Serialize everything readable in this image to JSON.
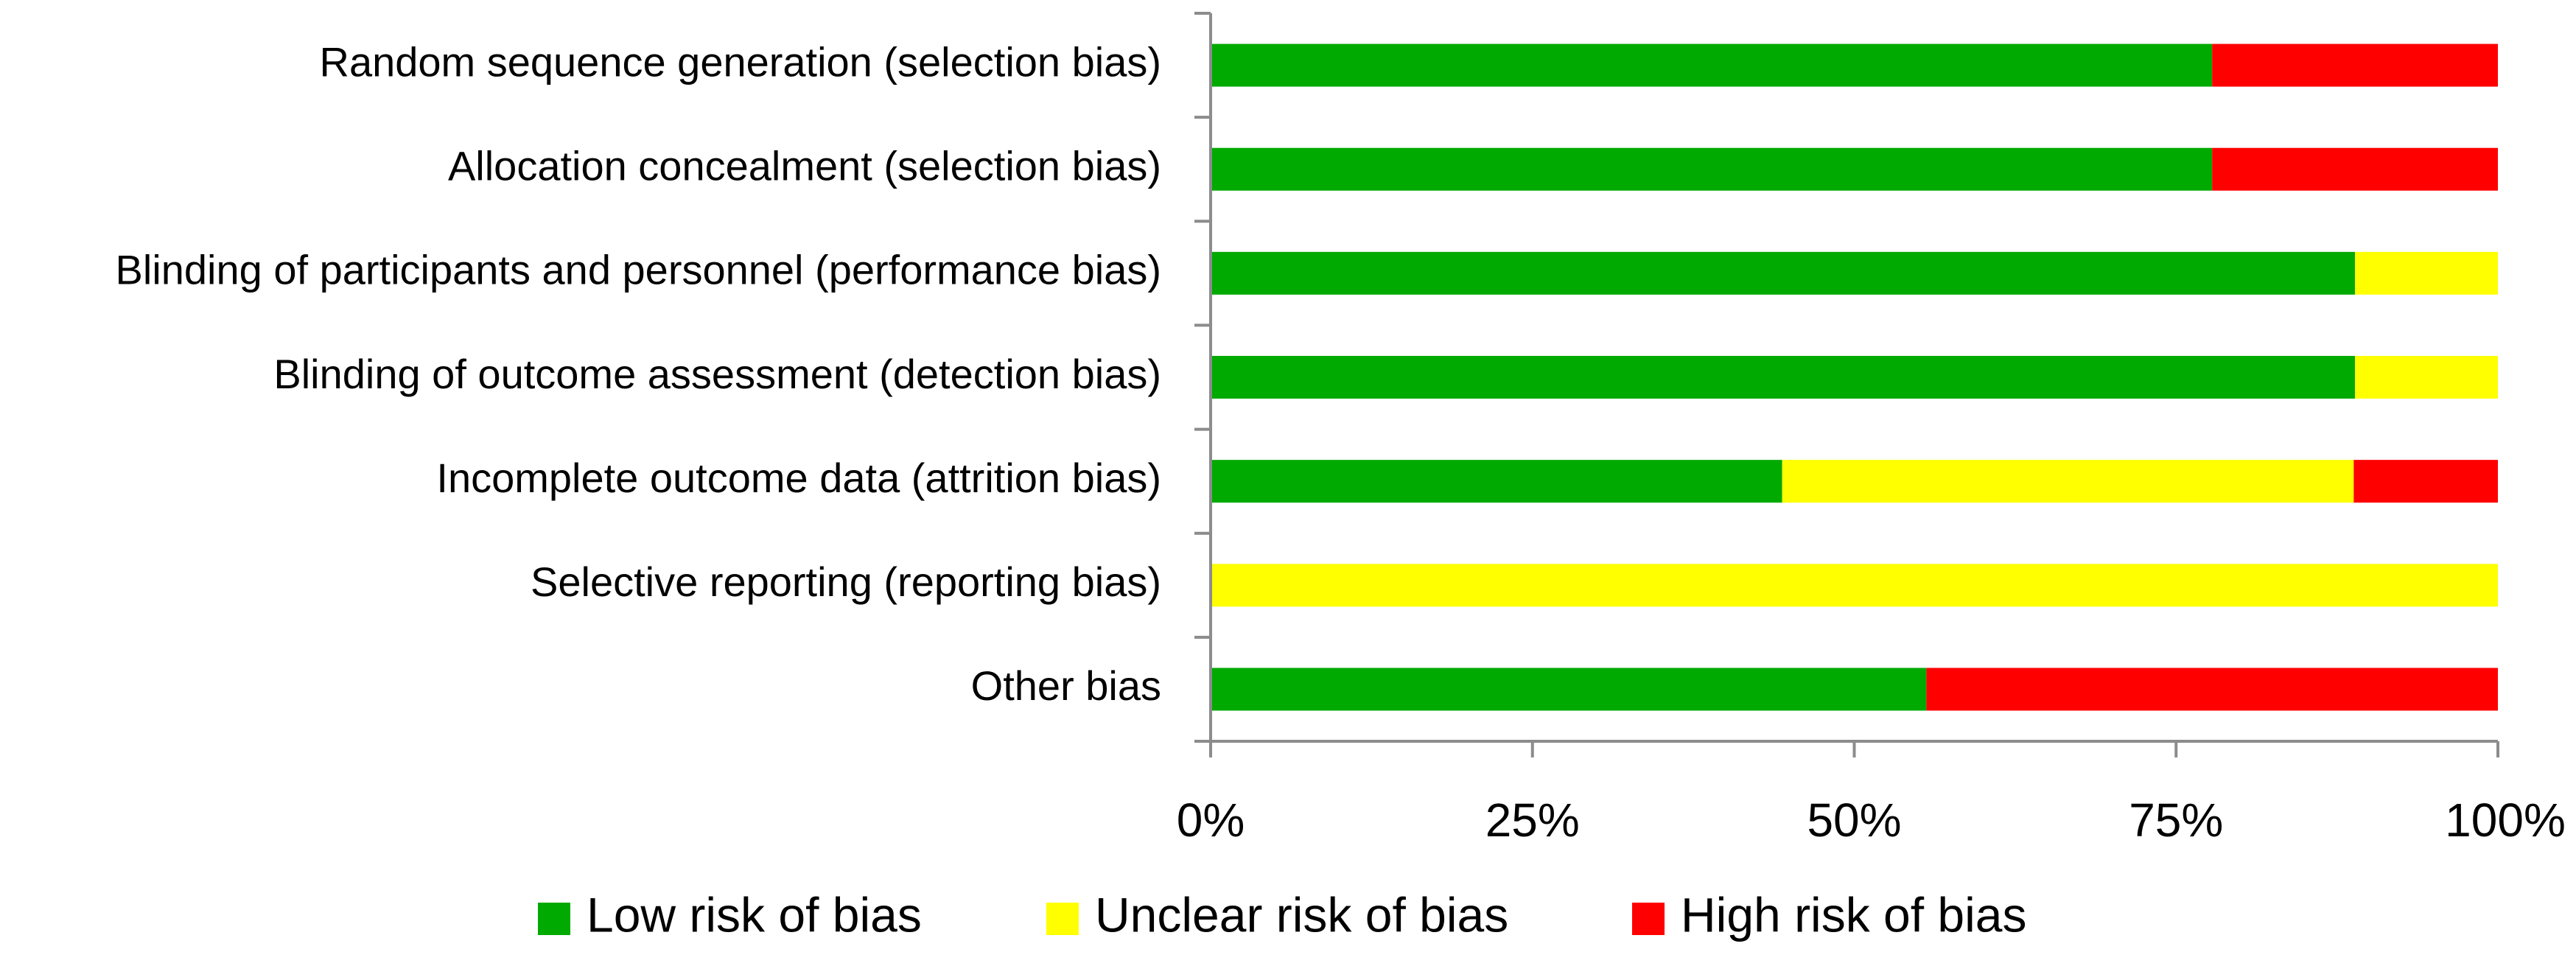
{
  "chart_data": {
    "type": "bar",
    "orientation": "horizontal",
    "stacked": true,
    "title": "",
    "xlabel": "",
    "ylabel": "",
    "xlim": [
      0,
      100
    ],
    "categories": [
      "Random sequence generation (selection bias)",
      "Allocation concealment (selection bias)",
      "Blinding of participants and personnel (performance bias)",
      "Blinding of outcome assessment (detection bias)",
      "Incomplete outcome data (attrition bias)",
      "Selective reporting (reporting bias)",
      "Other bias"
    ],
    "series": [
      {
        "name": "Low risk of bias",
        "color": "#00aa00",
        "values": [
          77.8,
          77.8,
          88.9,
          88.9,
          44.4,
          0,
          55.6
        ]
      },
      {
        "name": "Unclear risk of bias",
        "color": "#ffff00",
        "values": [
          0,
          0,
          11.1,
          11.1,
          44.4,
          100,
          0
        ]
      },
      {
        "name": "High risk of bias",
        "color": "#ff0000",
        "values": [
          22.2,
          22.2,
          0,
          0,
          11.2,
          0,
          44.4
        ]
      }
    ],
    "ticks": [
      0,
      25,
      50,
      75,
      100
    ],
    "tick_labels": [
      "0%",
      "25%",
      "50%",
      "75%",
      "100%"
    ],
    "legend_position": "bottom",
    "grid": false
  }
}
